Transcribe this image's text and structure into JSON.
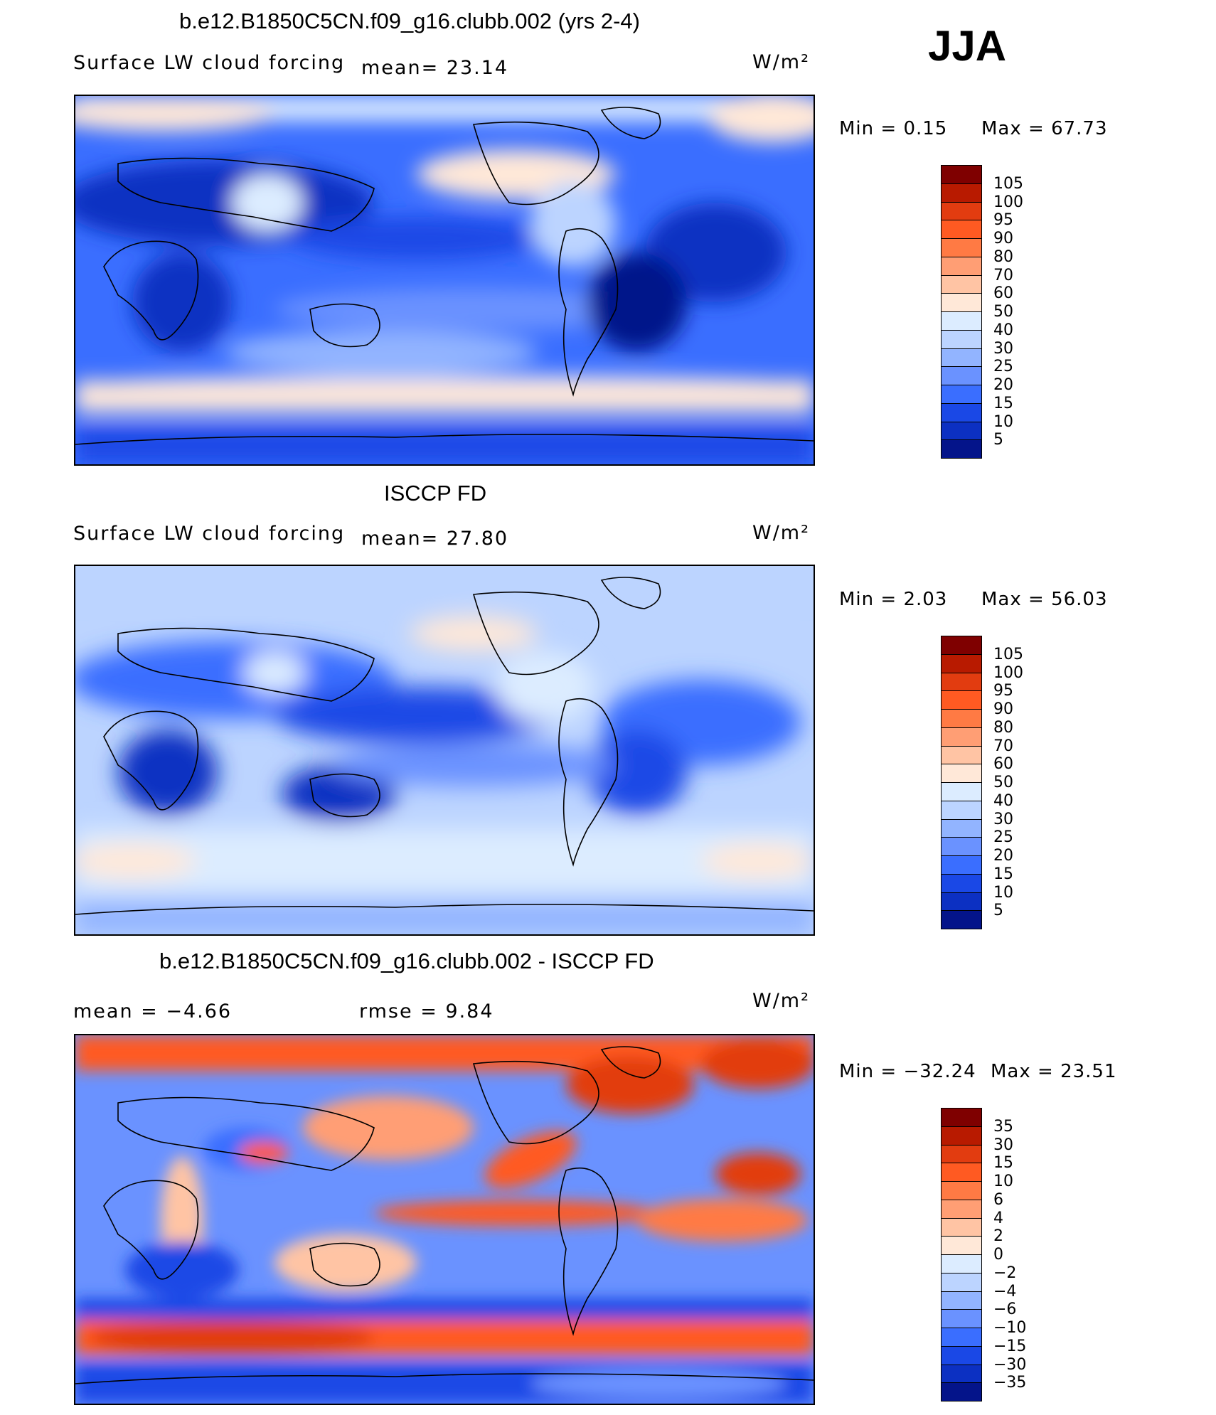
{
  "season": "JJA",
  "panels": [
    {
      "title": "b.e12.B1850C5CN.f09_g16.clubb.002 (yrs 2-4)",
      "variable": "Surface LW cloud forcing",
      "mean_text": "mean=   23.14",
      "units": "W/m²",
      "min_text": "Min  =      0.15",
      "max_text": "Max  =    67.73",
      "colorbar_labels": [
        "105",
        "100",
        "95",
        "90",
        "80",
        "70",
        "60",
        "50",
        "40",
        "30",
        "25",
        "20",
        "15",
        "10",
        "5"
      ],
      "colorbar_colors": [
        "#7f0000",
        "#b81a00",
        "#e23c10",
        "#ff5a22",
        "#ff7a44",
        "#ff9e74",
        "#ffc4a4",
        "#ffe8d8",
        "#dcecff",
        "#bcd4ff",
        "#92b4ff",
        "#6a92ff",
        "#3a6eff",
        "#1a48e6",
        "#0c30c2",
        "#04148a"
      ]
    },
    {
      "title": "ISCCP FD",
      "variable": "Surface LW cloud forcing",
      "mean_text": "mean=   27.80",
      "units": "W/m²",
      "min_text": "Min  =      2.03",
      "max_text": "Max  =    56.03",
      "colorbar_labels": [
        "105",
        "100",
        "95",
        "90",
        "80",
        "70",
        "60",
        "50",
        "40",
        "30",
        "25",
        "20",
        "15",
        "10",
        "5"
      ],
      "colorbar_colors": [
        "#7f0000",
        "#b81a00",
        "#e23c10",
        "#ff5a22",
        "#ff7a44",
        "#ff9e74",
        "#ffc4a4",
        "#ffe8d8",
        "#dcecff",
        "#bcd4ff",
        "#92b4ff",
        "#6a92ff",
        "#3a6eff",
        "#1a48e6",
        "#0c30c2",
        "#04148a"
      ]
    },
    {
      "title": "b.e12.B1850C5CN.f09_g16.clubb.002 - ISCCP FD",
      "mean_text": "mean  =    −4.66",
      "rmse_text": "rmse  =     9.84",
      "units": "W/m²",
      "min_text": "Min  =  −32.24",
      "max_text": "Max  =    23.51",
      "colorbar_labels": [
        "35",
        "30",
        "15",
        "10",
        "6",
        "4",
        "2",
        "0",
        "−2",
        "−4",
        "−6",
        "−10",
        "−15",
        "−30",
        "−35"
      ],
      "colorbar_colors": [
        "#7f0000",
        "#b81a00",
        "#e23c10",
        "#ff5a22",
        "#ff7a44",
        "#ff9e74",
        "#ffc4a4",
        "#ffe8d8",
        "#dcecff",
        "#bcd4ff",
        "#92b4ff",
        "#6a92ff",
        "#3a6eff",
        "#1a48e6",
        "#0c30c2",
        "#04148a"
      ]
    }
  ]
}
